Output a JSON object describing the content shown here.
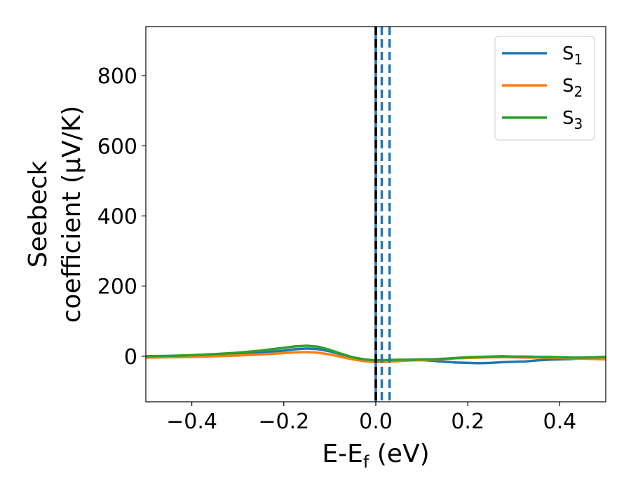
{
  "chart_data": {
    "type": "line",
    "xlabel": {
      "main": "E-E",
      "sub": "f",
      "tail": " (eV)"
    },
    "ylabel": {
      "line1": "Seebeck",
      "line2": "coefficient  (μV/K)"
    },
    "xlim": [
      -0.5,
      0.5
    ],
    "ylim": [
      -130,
      940
    ],
    "xticks": [
      -0.4,
      -0.2,
      0.0,
      0.2,
      0.4
    ],
    "xtick_labels": [
      "−0.4",
      "−0.2",
      "0.0",
      "0.2",
      "0.4"
    ],
    "yticks": [
      0,
      200,
      400,
      600,
      800
    ],
    "ytick_labels": [
      "0",
      "200",
      "400",
      "600",
      "800"
    ],
    "grid": false,
    "legend_position": "top-right",
    "series": [
      {
        "name": "S",
        "sub": "1",
        "color": "#1f77b4",
        "x": [
          -0.5,
          -0.45,
          -0.4,
          -0.35,
          -0.3,
          -0.25,
          -0.2,
          -0.175,
          -0.15,
          -0.125,
          -0.1,
          -0.075,
          -0.05,
          -0.025,
          0.0,
          0.025,
          0.05,
          0.075,
          0.1,
          0.125,
          0.15,
          0.175,
          0.2,
          0.225,
          0.25,
          0.275,
          0.3,
          0.325,
          0.35,
          0.375,
          0.4,
          0.425,
          0.45,
          0.475,
          0.5
        ],
        "y": [
          -3,
          -2,
          0,
          3,
          6,
          10,
          16,
          20,
          22,
          20,
          14,
          5,
          -4,
          -10,
          -13,
          -12,
          -11,
          -11,
          -11,
          -13,
          -16,
          -18,
          -19,
          -20,
          -19,
          -17,
          -16,
          -15,
          -12,
          -10,
          -9,
          -8,
          -6,
          -4,
          -3
        ]
      },
      {
        "name": "S",
        "sub": "2",
        "color": "#ff7f0e",
        "x": [
          -0.5,
          -0.45,
          -0.4,
          -0.35,
          -0.3,
          -0.25,
          -0.2,
          -0.175,
          -0.15,
          -0.125,
          -0.1,
          -0.075,
          -0.05,
          -0.025,
          0.0,
          0.025,
          0.05,
          0.075,
          0.1,
          0.125,
          0.15,
          0.175,
          0.2,
          0.225,
          0.25,
          0.275,
          0.3,
          0.325,
          0.35,
          0.375,
          0.4,
          0.425,
          0.45,
          0.475,
          0.5
        ],
        "y": [
          -4,
          -3,
          -2,
          0,
          2,
          5,
          9,
          11,
          12,
          10,
          5,
          -2,
          -9,
          -14,
          -17,
          -16,
          -14,
          -12,
          -11,
          -10,
          -8,
          -6,
          -5,
          -4,
          -3,
          -3,
          -3,
          -4,
          -4,
          -4,
          -5,
          -6,
          -7,
          -8,
          -9
        ]
      },
      {
        "name": "S",
        "sub": "3",
        "color": "#2ca02c",
        "x": [
          -0.5,
          -0.45,
          -0.4,
          -0.35,
          -0.3,
          -0.25,
          -0.2,
          -0.175,
          -0.15,
          -0.125,
          -0.1,
          -0.075,
          -0.05,
          -0.025,
          0.0,
          0.025,
          0.05,
          0.075,
          0.1,
          0.125,
          0.15,
          0.175,
          0.2,
          0.225,
          0.25,
          0.275,
          0.3,
          0.325,
          0.35,
          0.375,
          0.4,
          0.425,
          0.45,
          0.475,
          0.5
        ],
        "y": [
          0,
          1,
          3,
          6,
          10,
          16,
          24,
          28,
          30,
          27,
          18,
          7,
          -3,
          -9,
          -12,
          -11,
          -10,
          -10,
          -9,
          -9,
          -7,
          -5,
          -3,
          -2,
          -1,
          0,
          -1,
          -1,
          -2,
          -2,
          -3,
          -4,
          -4,
          -3,
          -2
        ]
      }
    ],
    "vlines": [
      {
        "x": 0.0,
        "color": "#1f77b4",
        "style": "solid"
      },
      {
        "x": 0.0,
        "color": "#000000",
        "style": "dashed"
      },
      {
        "x": 0.013,
        "color": "#1f77b4",
        "style": "dashed"
      },
      {
        "x": 0.03,
        "color": "#1f77b4",
        "style": "dashed"
      }
    ]
  }
}
